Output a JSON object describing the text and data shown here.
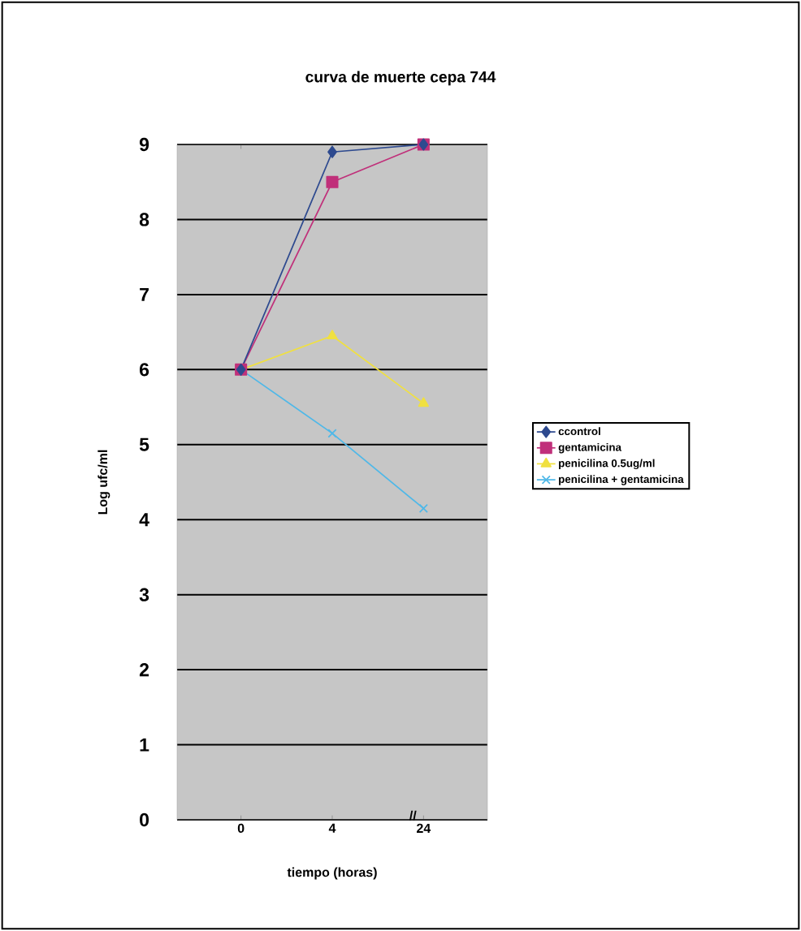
{
  "chart_data": {
    "type": "line",
    "title": "curva de muerte cepa 744",
    "xlabel": "tiempo (horas)",
    "ylabel": "Log ufc/ml",
    "categories": [
      "0",
      "4",
      "24"
    ],
    "series": [
      {
        "name": "ccontrol",
        "color": "#2e4a8f",
        "marker": "diamond",
        "values": [
          6.0,
          8.9,
          9.0
        ]
      },
      {
        "name": "gentamicina",
        "color": "#c0307a",
        "marker": "square",
        "values": [
          6.0,
          8.5,
          9.0
        ]
      },
      {
        "name": "penicilina 0.5ug/ml",
        "color": "#f0e040",
        "marker": "triangle",
        "values": [
          6.0,
          6.45,
          5.55
        ]
      },
      {
        "name": "penicilina + gentamicina",
        "color": "#4fb8e8",
        "marker": "cross",
        "values": [
          6.0,
          5.15,
          4.15
        ]
      }
    ],
    "ylim": [
      0,
      9
    ],
    "yticks": [
      0,
      1,
      2,
      3,
      4,
      5,
      6,
      7,
      8,
      9
    ],
    "grid": "y",
    "legend": "right",
    "line_style": "solid",
    "annotations": [
      "//"
    ]
  }
}
